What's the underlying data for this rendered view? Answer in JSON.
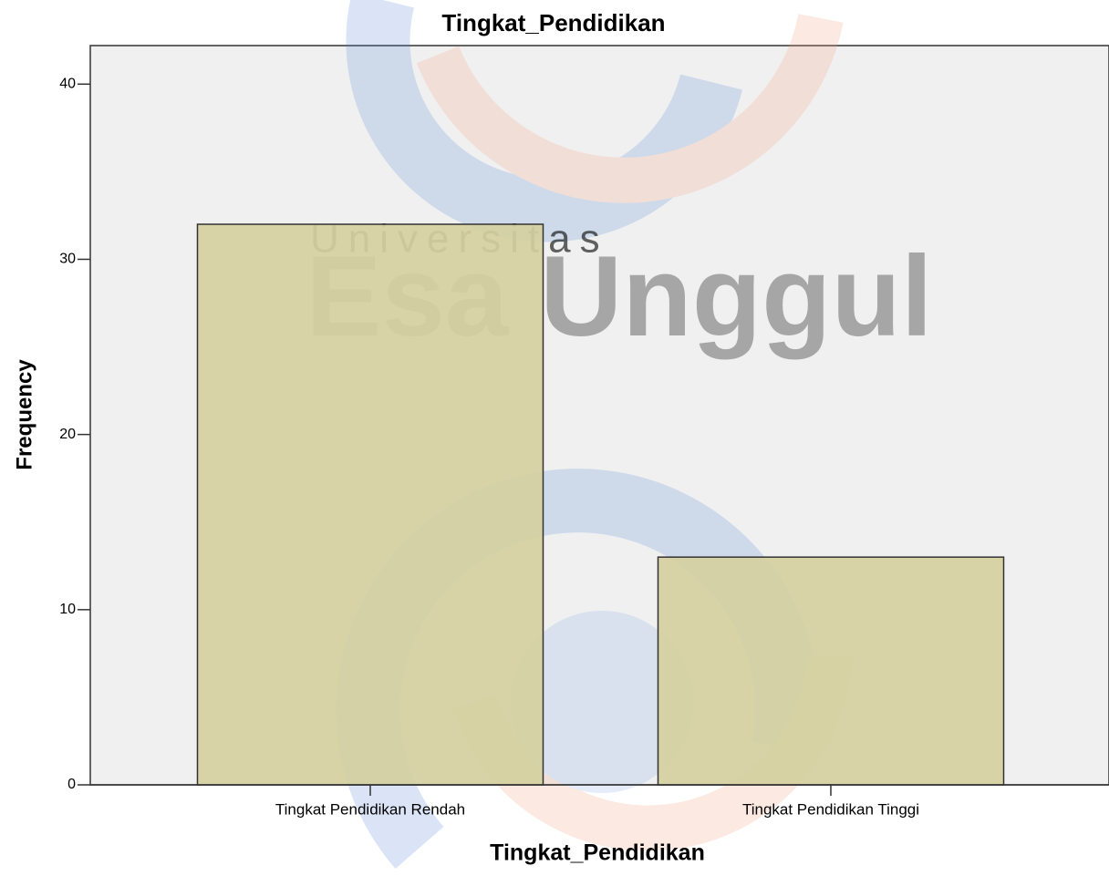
{
  "chart_data": {
    "type": "bar",
    "title": "Tingkat_Pendidikan",
    "x_label": "Tingkat_Pendidikan",
    "y_label": "Frequency",
    "categories": [
      "Tingkat Pendidikan Rendah",
      "Tingkat Pendidikan Tinggi"
    ],
    "values": [
      32,
      13
    ],
    "color": "#d5d0a0",
    "ylim": [
      0,
      42.2
    ],
    "yticks": [
      0,
      10,
      20,
      30,
      40
    ],
    "grid": false,
    "watermark": {
      "top": "Universitas",
      "main": "Esa Unggul"
    }
  }
}
